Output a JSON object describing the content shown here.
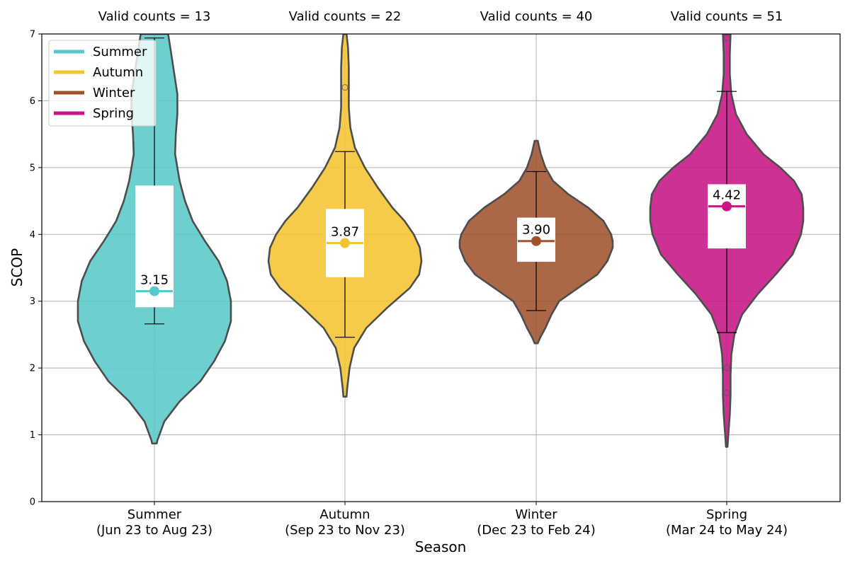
{
  "chart_data": {
    "type": "violin",
    "xlabel": "Season",
    "ylabel": "SCOP",
    "ylim": [
      0,
      7
    ],
    "yticks": [
      0,
      1,
      2,
      3,
      4,
      5,
      6,
      7
    ],
    "grid": true,
    "legend_position": "top-left",
    "colors": {
      "Summer": "#5ac8c8",
      "Autumn": "#f4c430",
      "Winter": "#a0522d",
      "Spring": "#c71585",
      "violin_edge": "#4d4d4d",
      "grid": "#b0b0b0"
    },
    "categories": [
      {
        "name": "Summer",
        "line1": "Summer",
        "line2": "(Jun 23 to Aug 23)",
        "count_label": "Valid counts = 13",
        "mean": 3.15,
        "mean_label": "3.15",
        "q1": 2.92,
        "q3": 4.72,
        "median": 3.15,
        "whisker_low": 2.66,
        "whisker_high": 6.94,
        "outliers": [],
        "density": {
          "y": [
            0.87,
            0.92,
            1.2,
            1.5,
            1.8,
            2.1,
            2.4,
            2.7,
            3.0,
            3.3,
            3.6,
            3.9,
            4.2,
            4.5,
            4.8,
            5.0,
            5.2,
            5.5,
            5.8,
            6.1,
            6.4,
            6.7,
            7.0
          ],
          "w": [
            0.03,
            0.04,
            0.13,
            0.33,
            0.6,
            0.78,
            0.92,
            1.0,
            1.0,
            0.95,
            0.84,
            0.66,
            0.5,
            0.4,
            0.33,
            0.3,
            0.27,
            0.28,
            0.3,
            0.3,
            0.26,
            0.22,
            0.18
          ]
        }
      },
      {
        "name": "Autumn",
        "line1": "Autumn",
        "line2": "(Sep 23 to Nov 23)",
        "count_label": "Valid counts = 22",
        "mean": 3.87,
        "mean_label": "3.87",
        "q1": 3.37,
        "q3": 4.37,
        "median": 3.87,
        "whisker_low": 2.46,
        "whisker_high": 5.24,
        "outliers": [
          6.2
        ],
        "density": {
          "y": [
            1.57,
            1.7,
            2.0,
            2.3,
            2.6,
            2.9,
            3.2,
            3.4,
            3.6,
            3.8,
            4.0,
            4.2,
            4.4,
            4.7,
            5.0,
            5.3,
            5.6,
            5.9,
            6.2,
            6.5,
            6.8,
            7.0
          ],
          "w": [
            0.02,
            0.03,
            0.06,
            0.12,
            0.28,
            0.55,
            0.85,
            0.97,
            1.0,
            0.98,
            0.9,
            0.78,
            0.62,
            0.43,
            0.26,
            0.13,
            0.07,
            0.05,
            0.05,
            0.05,
            0.04,
            0.02
          ]
        }
      },
      {
        "name": "Winter",
        "line1": "Winter",
        "line2": "(Dec 23 to Feb 24)",
        "count_label": "Valid counts = 40",
        "mean": 3.9,
        "mean_label": "3.90",
        "q1": 3.6,
        "q3": 4.24,
        "median": 3.9,
        "whisker_low": 2.86,
        "whisker_high": 4.94,
        "outliers": [],
        "density": {
          "y": [
            2.37,
            2.45,
            2.6,
            2.8,
            3.0,
            3.2,
            3.4,
            3.6,
            3.8,
            3.9,
            4.0,
            4.2,
            4.4,
            4.6,
            4.8,
            5.0,
            5.2,
            5.4
          ],
          "w": [
            0.02,
            0.05,
            0.12,
            0.2,
            0.3,
            0.55,
            0.8,
            0.93,
            1.0,
            1.0,
            0.98,
            0.88,
            0.68,
            0.42,
            0.22,
            0.12,
            0.06,
            0.02
          ]
        }
      },
      {
        "name": "Spring",
        "line1": "Spring",
        "line2": "(Mar 24 to May 24)",
        "count_label": "Valid counts = 51",
        "mean": 4.42,
        "mean_label": "4.42",
        "q1": 3.8,
        "q3": 4.74,
        "median": 4.42,
        "whisker_low": 2.53,
        "whisker_high": 6.14,
        "outliers": [
          1.63,
          2.0,
          6.94
        ],
        "density": {
          "y": [
            0.82,
            1.0,
            1.3,
            1.6,
            1.9,
            2.2,
            2.5,
            2.8,
            3.1,
            3.4,
            3.7,
            4.0,
            4.2,
            4.4,
            4.6,
            4.8,
            5.0,
            5.2,
            5.5,
            5.8,
            6.1,
            6.4,
            6.7,
            7.0
          ],
          "w": [
            0.01,
            0.02,
            0.04,
            0.05,
            0.05,
            0.06,
            0.1,
            0.2,
            0.4,
            0.64,
            0.86,
            0.97,
            1.0,
            1.0,
            0.98,
            0.88,
            0.7,
            0.48,
            0.26,
            0.12,
            0.06,
            0.04,
            0.04,
            0.05
          ]
        }
      }
    ]
  }
}
